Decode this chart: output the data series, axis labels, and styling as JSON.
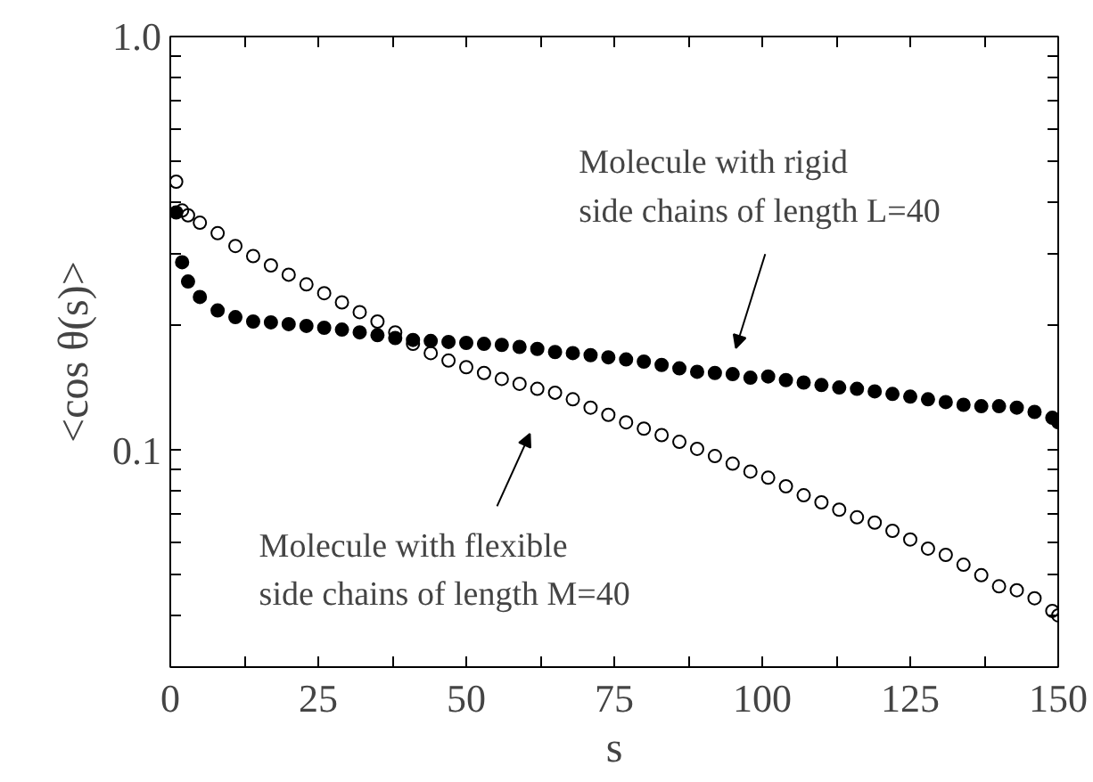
{
  "chart_data": {
    "type": "scatter",
    "xlabel": "s",
    "ylabel": "<cos θ(s)>",
    "log": "y",
    "marker": "circle",
    "grid": false,
    "xlim": [
      0,
      150
    ],
    "ylim": [
      0.03,
      1.0
    ],
    "xticks": [
      0,
      {
        "value": 12.5,
        "label": null
      },
      25,
      {
        "value": 37.5,
        "label": null
      },
      50,
      {
        "value": 62.5,
        "label": null
      },
      75,
      {
        "value": 87.5,
        "label": null
      },
      100,
      {
        "value": 112.5,
        "label": null
      },
      125,
      {
        "value": 137.5,
        "label": null
      },
      150
    ],
    "yticks": [
      {
        "value": 0.04,
        "label": null
      },
      {
        "value": 0.05,
        "label": null
      },
      {
        "value": 0.06,
        "label": null
      },
      {
        "value": 0.07,
        "label": null
      },
      {
        "value": 0.08,
        "label": null
      },
      {
        "value": 0.09,
        "label": null
      },
      {
        "value": 0.1,
        "label": "0.1"
      },
      {
        "value": 0.2,
        "label": null
      },
      {
        "value": 0.3,
        "label": null
      },
      {
        "value": 0.4,
        "label": null
      },
      {
        "value": 0.5,
        "label": null
      },
      {
        "value": 0.6,
        "label": null
      },
      {
        "value": 0.7,
        "label": null
      },
      {
        "value": 0.8,
        "label": null
      },
      {
        "value": 0.9,
        "label": null
      },
      {
        "value": 1.0,
        "label": "1.0"
      }
    ],
    "x": [
      1,
      2,
      3,
      5,
      8,
      11,
      14,
      17,
      20,
      23,
      26,
      29,
      32,
      35,
      38,
      41,
      44,
      47,
      50,
      53,
      56,
      59,
      62,
      65,
      68,
      71,
      74,
      77,
      80,
      83,
      86,
      89,
      92,
      95,
      98,
      101,
      104,
      107,
      110,
      113,
      116,
      119,
      122,
      125,
      128,
      131,
      134,
      137,
      140,
      143,
      146,
      149,
      150
    ],
    "series": [
      {
        "color": "#000000",
        "values": [
          0.446,
          0.38,
          0.37,
          0.355,
          0.335,
          0.312,
          0.295,
          0.28,
          0.266,
          0.252,
          0.24,
          0.228,
          0.216,
          0.205,
          0.193,
          0.181,
          0.172,
          0.165,
          0.159,
          0.154,
          0.149,
          0.145,
          0.141,
          0.138,
          0.133,
          0.127,
          0.122,
          0.117,
          0.113,
          0.109,
          0.105,
          0.101,
          0.097,
          0.093,
          0.089,
          0.086,
          0.082,
          0.078,
          0.075,
          0.072,
          0.069,
          0.067,
          0.064,
          0.061,
          0.058,
          0.056,
          0.053,
          0.05,
          0.047,
          0.046,
          0.044,
          0.041,
          0.04
        ]
      },
      {
        "color": "#000000",
        "values": [
          0.376,
          0.285,
          0.256,
          0.235,
          0.218,
          0.21,
          0.205,
          0.204,
          0.202,
          0.2,
          0.198,
          0.196,
          0.193,
          0.19,
          0.187,
          0.185,
          0.184,
          0.183,
          0.182,
          0.181,
          0.18,
          0.178,
          0.176,
          0.173,
          0.172,
          0.17,
          0.168,
          0.166,
          0.164,
          0.161,
          0.158,
          0.155,
          0.154,
          0.153,
          0.15,
          0.151,
          0.148,
          0.146,
          0.144,
          0.142,
          0.141,
          0.139,
          0.137,
          0.135,
          0.133,
          0.131,
          0.129,
          0.128,
          0.128,
          0.127,
          0.124,
          0.12,
          0.117
        ]
      }
    ],
    "annotations": [
      "Molecule with flexible\nside chains of length M=40",
      "Molecule with rigid\nside chains of length L=40"
    ]
  }
}
